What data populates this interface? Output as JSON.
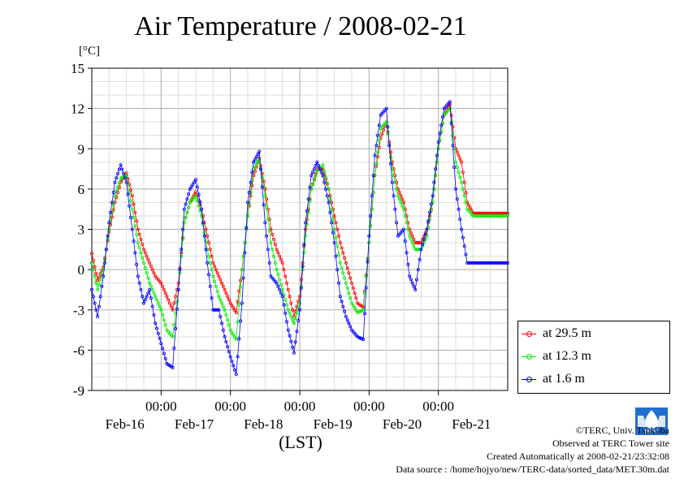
{
  "chart_data": {
    "type": "line",
    "title": "Air Temperature / 2008-02-21",
    "ylabel": "[°C]",
    "xlabel": "(LST)",
    "ylim": [
      -9,
      15
    ],
    "yticks": [
      15,
      12,
      9,
      6,
      3,
      0,
      -3,
      -6,
      -9
    ],
    "ytick_labels": [
      "15",
      "12",
      "9",
      "6",
      "3",
      "0",
      "-3",
      "-6",
      "-9"
    ],
    "xlim": [
      -24,
      120
    ],
    "xticks_hours": [
      0,
      24,
      48,
      72,
      96
    ],
    "xtick_time_labels": [
      "00:00",
      "00:00",
      "00:00",
      "00:00",
      "00:00"
    ],
    "xtick_date_labels": [
      "Feb-16",
      "Feb-17",
      "Feb-18",
      "Feb-19",
      "Feb-20",
      "Feb-21"
    ],
    "grid": true,
    "legend": "bottom-right",
    "series": [
      {
        "name": "at 29.5 m",
        "color": "#ff0000",
        "x": [
          -24,
          -22,
          -20,
          -18,
          -16,
          -14,
          -12,
          -10,
          -8,
          -6,
          -4,
          -2,
          0,
          2,
          4,
          6,
          8,
          10,
          12,
          14,
          16,
          18,
          20,
          22,
          24,
          26,
          28,
          30,
          32,
          34,
          36,
          38,
          40,
          42,
          44,
          46,
          48,
          50,
          52,
          54,
          56,
          58,
          60,
          62,
          64,
          66,
          68,
          70,
          72,
          74,
          76,
          78,
          80,
          82,
          84,
          86,
          88,
          90,
          92,
          94,
          96,
          98,
          100,
          102,
          104,
          106,
          108,
          110,
          112,
          114,
          116,
          118,
          120
        ],
        "values": [
          1.2,
          -0.8,
          0.2,
          2.8,
          5.0,
          6.5,
          7.2,
          5.5,
          3.0,
          1.5,
          0.5,
          -0.5,
          -1.0,
          -2.0,
          -3.0,
          -1.0,
          3.5,
          5.0,
          5.8,
          4.5,
          2.5,
          0.5,
          -0.5,
          -1.5,
          -2.5,
          -3.2,
          0.0,
          4.0,
          7.0,
          8.3,
          6.0,
          3.0,
          1.5,
          0.5,
          -1.5,
          -3.5,
          -2.0,
          3.0,
          6.0,
          7.5,
          7.5,
          6.0,
          4.0,
          2.0,
          0.5,
          -1.0,
          -2.5,
          -2.8,
          2.0,
          7.0,
          9.8,
          11.0,
          8.0,
          6.0,
          5.0,
          3.0,
          2.0,
          2.0,
          3.0,
          5.0,
          9.0,
          11.5,
          12.3,
          9.0,
          8.0,
          5.0,
          4.2,
          4.2,
          4.2,
          4.2,
          4.2,
          4.2,
          4.2
        ]
      },
      {
        "name": "at 12.3 m",
        "color": "#00ee00",
        "x": [
          -24,
          -22,
          -20,
          -18,
          -16,
          -14,
          -12,
          -10,
          -8,
          -6,
          -4,
          -2,
          0,
          2,
          4,
          6,
          8,
          10,
          12,
          14,
          16,
          18,
          20,
          22,
          24,
          26,
          28,
          30,
          32,
          34,
          36,
          38,
          40,
          42,
          44,
          46,
          48,
          50,
          52,
          54,
          56,
          58,
          60,
          62,
          64,
          66,
          68,
          70,
          72,
          74,
          76,
          78,
          80,
          82,
          84,
          86,
          88,
          90,
          92,
          94,
          96,
          98,
          100,
          102,
          104,
          106,
          108,
          110,
          112,
          114,
          116,
          118,
          120
        ],
        "values": [
          0.5,
          -1.5,
          0.0,
          3.0,
          5.5,
          6.8,
          7.0,
          4.5,
          2.0,
          0.5,
          -1.0,
          -2.0,
          -3.0,
          -4.5,
          -5.0,
          -1.5,
          3.5,
          5.0,
          5.5,
          4.0,
          1.5,
          -0.5,
          -2.0,
          -3.0,
          -4.5,
          -5.2,
          0.0,
          4.0,
          7.5,
          8.2,
          5.5,
          2.0,
          0.0,
          -1.5,
          -3.0,
          -4.0,
          -2.5,
          2.5,
          6.0,
          7.3,
          7.8,
          6.0,
          3.0,
          0.5,
          -1.0,
          -2.5,
          -3.2,
          -3.0,
          2.0,
          7.0,
          10.5,
          11.0,
          7.5,
          5.5,
          4.5,
          2.5,
          1.5,
          1.5,
          2.5,
          5.0,
          9.0,
          11.5,
          12.0,
          8.0,
          6.5,
          4.5,
          4.0,
          4.0,
          4.0,
          4.0,
          4.0,
          4.0,
          4.0
        ]
      },
      {
        "name": "at 1.6 m",
        "color": "#0000ff",
        "x": [
          -24,
          -22,
          -20,
          -18,
          -16,
          -14,
          -12,
          -10,
          -8,
          -6,
          -4,
          -2,
          0,
          2,
          4,
          6,
          8,
          10,
          12,
          14,
          16,
          18,
          20,
          22,
          24,
          26,
          28,
          30,
          32,
          34,
          36,
          38,
          40,
          42,
          44,
          46,
          48,
          50,
          52,
          54,
          56,
          58,
          60,
          62,
          64,
          66,
          68,
          70,
          72,
          74,
          76,
          78,
          80,
          82,
          84,
          86,
          88,
          90,
          92,
          94,
          96,
          98,
          100,
          102,
          104,
          106,
          108,
          110,
          112,
          114,
          116,
          118,
          120
        ],
        "values": [
          -1.5,
          -3.5,
          -0.5,
          3.5,
          6.5,
          7.8,
          6.5,
          3.0,
          -0.5,
          -2.5,
          -1.5,
          -4.0,
          -5.5,
          -7.0,
          -7.3,
          -1.5,
          4.5,
          6.0,
          6.7,
          4.5,
          0.5,
          -3.0,
          -3.0,
          -5.0,
          -6.5,
          -7.8,
          -2.5,
          5.0,
          8.0,
          8.8,
          3.5,
          -0.5,
          -1.0,
          -2.0,
          -4.5,
          -6.2,
          -3.0,
          3.5,
          7.0,
          8.0,
          7.0,
          5.0,
          2.0,
          -2.0,
          -3.5,
          -4.5,
          -5.0,
          -5.2,
          2.5,
          8.5,
          11.5,
          12.0,
          6.5,
          2.5,
          3.0,
          -0.5,
          -1.5,
          1.5,
          3.0,
          5.5,
          9.5,
          12.0,
          12.5,
          6.0,
          3.0,
          0.5,
          0.5,
          0.5,
          0.5,
          0.5,
          0.5,
          0.5,
          0.5
        ]
      }
    ]
  },
  "credits": {
    "copyright": "©TERC, Univ. Tsukuba",
    "observed": "Observed at TERC Tower site",
    "created": "Created Automatically at 2008-02-21/23:32:08",
    "source": "Data source : /home/hojyo/new/TERC-data/sorted_data/MET.30m.dat"
  },
  "logo_text": "TERC"
}
